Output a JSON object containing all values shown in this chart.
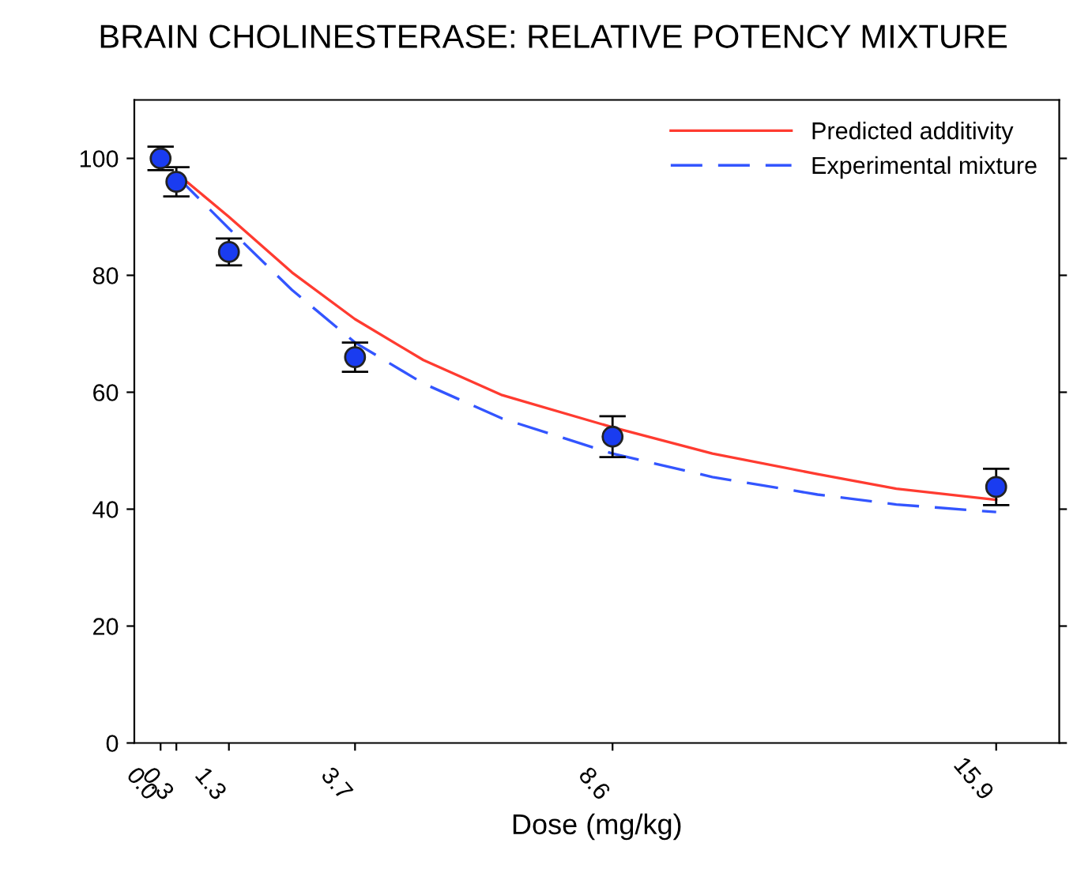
{
  "chart_data": {
    "type": "scatter",
    "title": "BRAIN CHOLINESTERASE: RELATIVE POTENCY MIXTURE",
    "xlabel": "Dose (mg/kg)",
    "xlim": [
      -0.5,
      17.1
    ],
    "xticks": [
      {
        "value": 0,
        "label": "0.0"
      },
      0.3,
      1.3,
      3.7,
      8.6,
      15.9
    ],
    "ylim": [
      0,
      110
    ],
    "yticks": [
      0,
      20,
      40,
      60,
      80,
      100
    ],
    "grid": false,
    "legend": "top right",
    "series": [
      {
        "type": "line",
        "name": "Predicted additivity",
        "color": "#ff3b30",
        "line_style": "solid",
        "x": [
          0.3,
          1.3,
          2.5,
          3.7,
          5,
          6.5,
          8.6,
          10.5,
          12.5,
          14,
          15.9
        ],
        "values": [
          97.5,
          90,
          80.5,
          72.5,
          65.5,
          59.5,
          54,
          49.5,
          46,
          43.5,
          41.6
        ]
      },
      {
        "type": "line",
        "name": "Experimental mixture",
        "color": "#3355ff",
        "line_style": "dashed",
        "x": [
          0.3,
          1.3,
          2.5,
          3.7,
          5,
          6.5,
          8.6,
          10.5,
          12.5,
          14,
          15.9
        ],
        "values": [
          97,
          88,
          77.5,
          68.5,
          61.5,
          55.5,
          49.5,
          45.5,
          42.5,
          40.8,
          39.5
        ]
      },
      {
        "color": "#1a3cf0",
        "marker": "circle",
        "x": [
          0,
          0.3,
          1.3,
          3.7,
          8.6,
          15.9
        ],
        "values": [
          100,
          96,
          84,
          66,
          52.4,
          43.8
        ],
        "errors": [
          2,
          2.5,
          2.3,
          2.5,
          3.5,
          3.1
        ]
      }
    ]
  }
}
